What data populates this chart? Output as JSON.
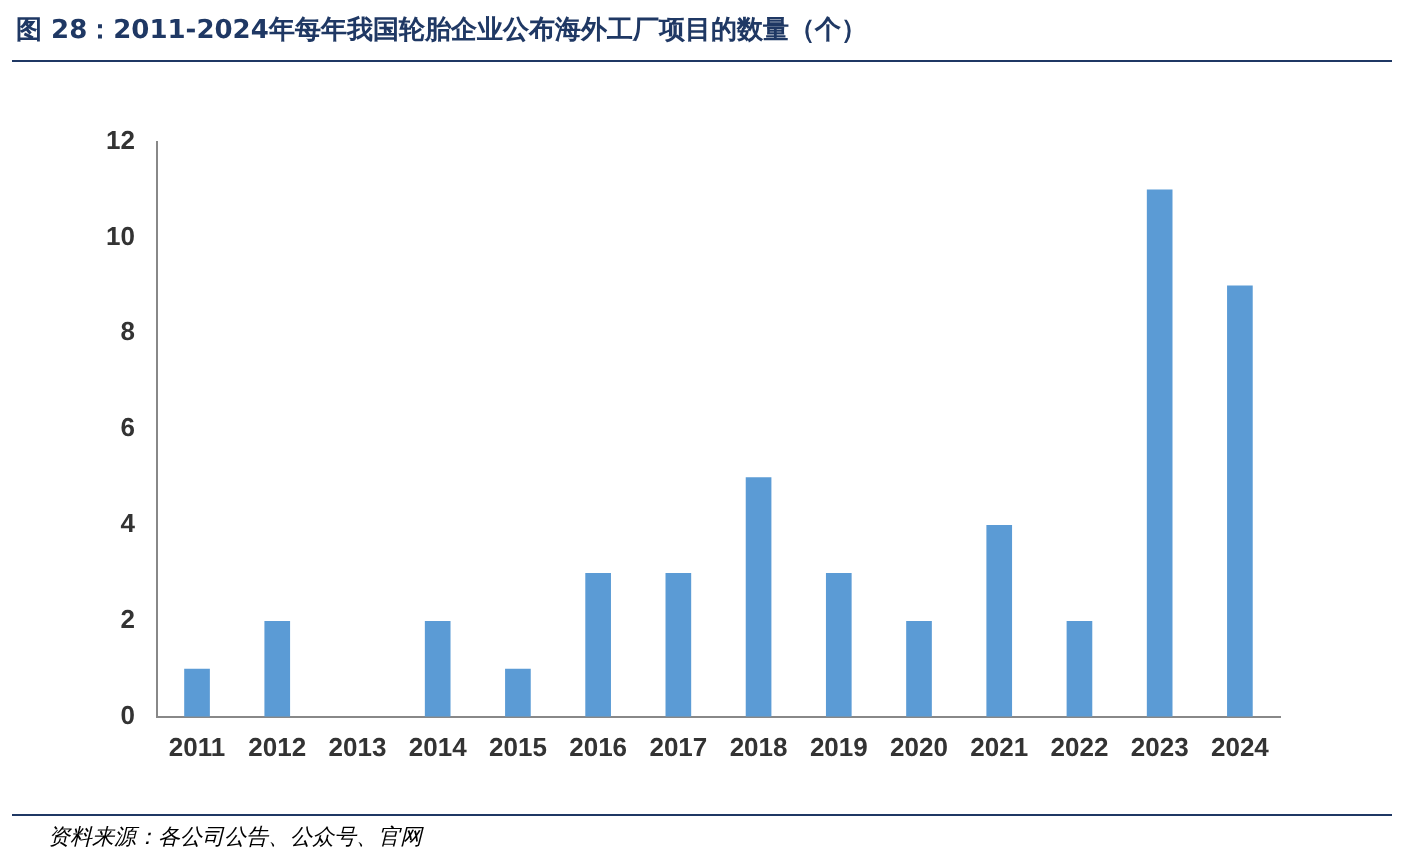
{
  "chart_data": {
    "type": "bar",
    "title": "图 28：2011-2024年每年我国轮胎企业公布海外工厂项目的数量（个）",
    "categories": [
      "2011",
      "2012",
      "2013",
      "2014",
      "2015",
      "2016",
      "2017",
      "2018",
      "2019",
      "2020",
      "2021",
      "2022",
      "2023",
      "2024"
    ],
    "values": [
      1,
      2,
      0,
      2,
      1,
      3,
      3,
      5,
      3,
      2,
      4,
      2,
      11,
      9
    ],
    "color": "#5b9bd5",
    "ylim": [
      0,
      12
    ],
    "yticks": [
      0,
      2,
      4,
      6,
      8,
      10,
      12
    ],
    "grid": false,
    "legend": false,
    "annotations": [
      "资料来源：各公司公告、公众号、官网"
    ]
  }
}
